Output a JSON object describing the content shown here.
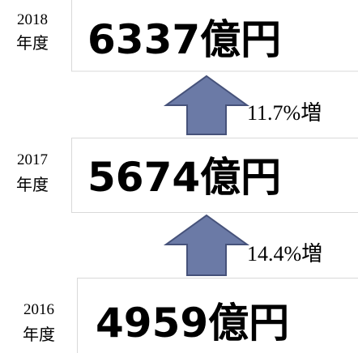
{
  "rows": [
    {
      "year": "2018",
      "unit": "年度",
      "value": "6337億円"
    },
    {
      "year": "2017",
      "unit": "年度",
      "value": "5674億円"
    },
    {
      "year": "2016",
      "unit": "年度",
      "value": "4959億円"
    }
  ],
  "growth": [
    "11.7%増",
    "14.4%増"
  ]
}
